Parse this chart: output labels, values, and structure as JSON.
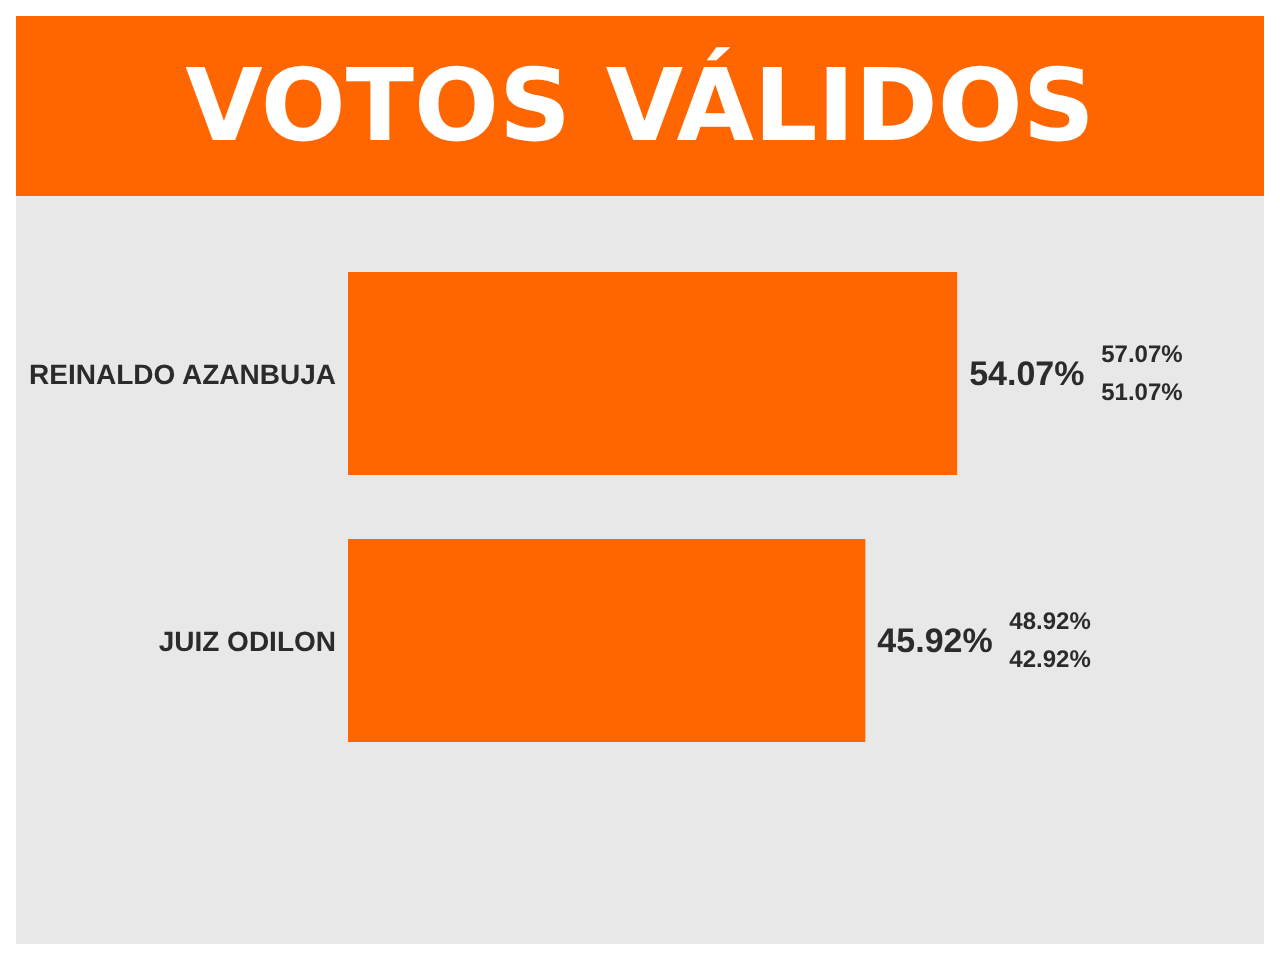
{
  "chart_data": {
    "type": "bar",
    "orientation": "horizontal",
    "title": "VOTOS VÁLIDOS",
    "categories": [
      "REINALDO AZANBUJA",
      "JUIZ ODILON"
    ],
    "values": [
      54.07,
      45.92
    ],
    "value_labels": [
      "54.07%",
      "45.92%"
    ],
    "annotations": [
      "57.07%",
      "51.07%",
      "48.92%",
      "42.92%"
    ],
    "color": "#ff6600"
  }
}
